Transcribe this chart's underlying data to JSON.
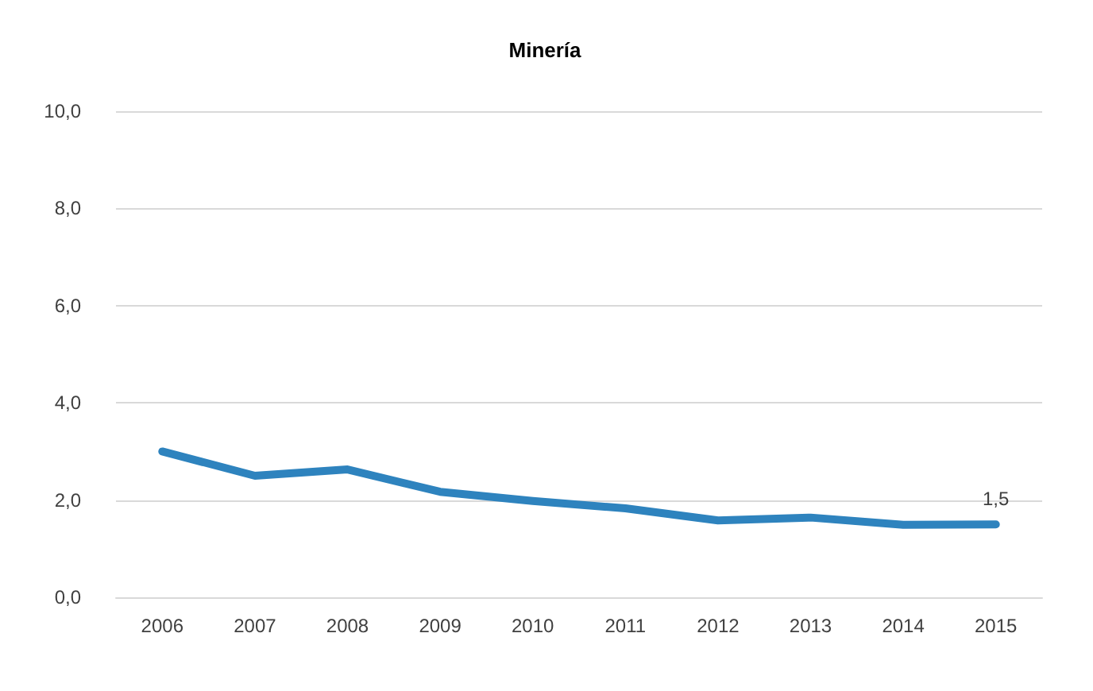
{
  "chart_data": {
    "type": "line",
    "title": "Minería",
    "categories": [
      "2006",
      "2007",
      "2008",
      "2009",
      "2010",
      "2011",
      "2012",
      "2013",
      "2014",
      "2015"
    ],
    "series": [
      {
        "color": "#2e83be",
        "values": [
          3.0,
          2.5,
          2.63,
          2.17,
          1.98,
          1.83,
          1.58,
          1.64,
          1.49,
          1.5
        ],
        "value_labels": [
          null,
          null,
          null,
          null,
          null,
          null,
          null,
          null,
          null,
          "1,5"
        ]
      }
    ],
    "ylim": [
      0,
      10
    ],
    "yticks": [
      {
        "value": 0,
        "label": "0,0"
      },
      {
        "value": 2,
        "label": "2,0"
      },
      {
        "value": 4,
        "label": "4,0"
      },
      {
        "value": 6,
        "label": "6,0"
      },
      {
        "value": 8,
        "label": "8,0"
      },
      {
        "value": 10,
        "label": "10,0"
      }
    ],
    "grid": "y",
    "marker": "none",
    "line_style": "solid"
  }
}
